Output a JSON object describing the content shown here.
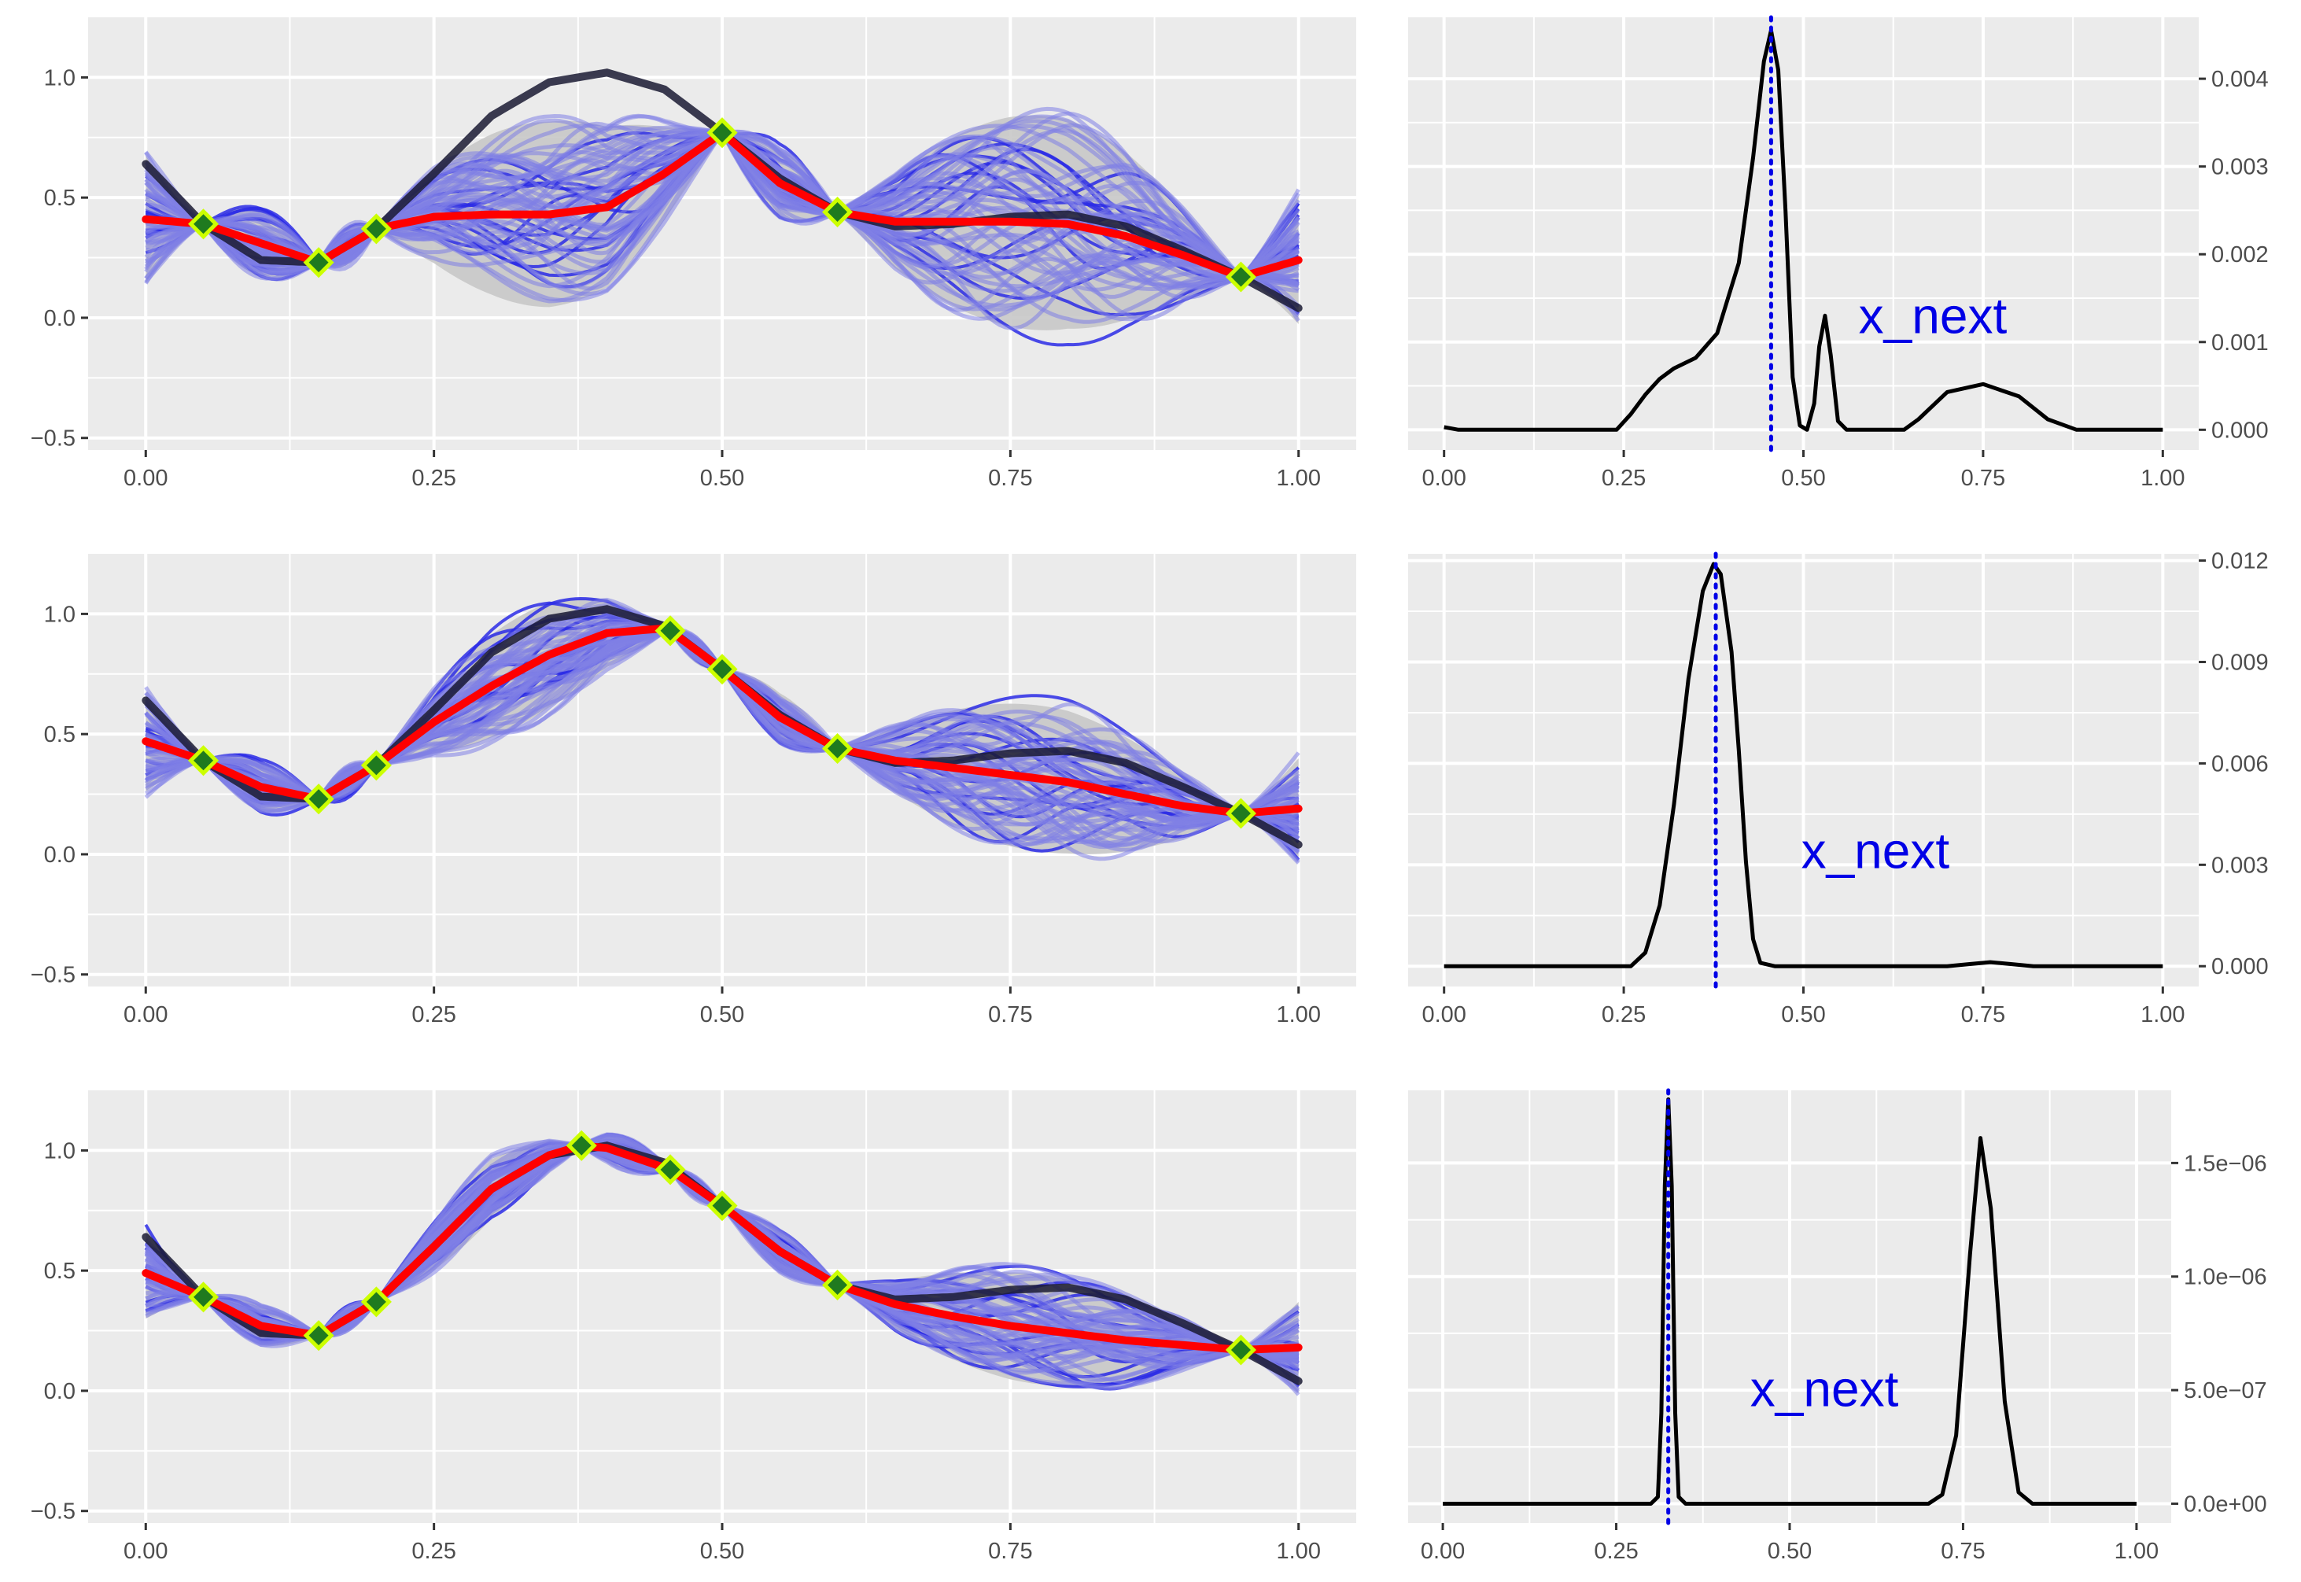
{
  "colors": {
    "panel_bg": "#ebebeb",
    "sample_band": "#c8c8c8",
    "sample_fill": "#7f7fe6",
    "sample_line": "#2b2be6",
    "true_function": "#1a1a33",
    "mean_function": "#ff0000",
    "observation_marker_fill": "#1f7a1f",
    "observation_marker_edge": "#ccff00",
    "acquisition_line": "#000000",
    "next_point_line": "#0000e6",
    "annotation_text": "#0000e6"
  },
  "chart_data": [
    {
      "id": "row1-posterior",
      "type": "line",
      "title": "",
      "xlabel": "",
      "ylabel": "",
      "xlim": [
        -0.05,
        1.05
      ],
      "ylim": [
        -0.55,
        1.25
      ],
      "x_ticks": [
        "0.00",
        "0.25",
        "0.50",
        "0.75",
        "1.00"
      ],
      "y_ticks": [
        "1.0",
        "0.5",
        "0.0",
        "-0.5"
      ],
      "observations": [
        {
          "x": 0.05,
          "y": 0.39
        },
        {
          "x": 0.15,
          "y": 0.23
        },
        {
          "x": 0.2,
          "y": 0.37
        },
        {
          "x": 0.5,
          "y": 0.77
        },
        {
          "x": 0.6,
          "y": 0.44
        },
        {
          "x": 0.95,
          "y": 0.17
        }
      ],
      "true_function": {
        "x": [
          0.0,
          0.05,
          0.1,
          0.15,
          0.2,
          0.25,
          0.3,
          0.35,
          0.4,
          0.45,
          0.5,
          0.55,
          0.6,
          0.65,
          0.7,
          0.75,
          0.8,
          0.85,
          0.9,
          0.95,
          1.0
        ],
        "y": [
          0.64,
          0.39,
          0.24,
          0.23,
          0.37,
          0.6,
          0.84,
          0.98,
          1.02,
          0.95,
          0.77,
          0.58,
          0.44,
          0.38,
          0.39,
          0.42,
          0.43,
          0.38,
          0.28,
          0.17,
          0.04
        ]
      },
      "mean_function": {
        "x": [
          0.0,
          0.05,
          0.1,
          0.15,
          0.2,
          0.25,
          0.3,
          0.35,
          0.4,
          0.45,
          0.5,
          0.55,
          0.6,
          0.65,
          0.7,
          0.75,
          0.8,
          0.85,
          0.9,
          0.95,
          1.0
        ],
        "y": [
          0.41,
          0.39,
          0.31,
          0.23,
          0.37,
          0.42,
          0.43,
          0.43,
          0.46,
          0.6,
          0.77,
          0.56,
          0.44,
          0.4,
          0.4,
          0.4,
          0.39,
          0.34,
          0.26,
          0.17,
          0.24
        ]
      },
      "samples": {
        "count": 60,
        "spread": 0.45,
        "seed": 7,
        "edge_spread": 0.28
      }
    },
    {
      "id": "row1-acquisition",
      "type": "line",
      "title": "",
      "xlabel": "",
      "ylabel": "",
      "xlim": [
        -0.05,
        1.05
      ],
      "ylim": [
        -0.00023,
        0.0047
      ],
      "x_ticks": [
        "0.00",
        "0.25",
        "0.50",
        "0.75",
        "1.00"
      ],
      "y_ticks": [
        {
          "value": 0.004,
          "label": "0.004"
        },
        {
          "value": 0.003,
          "label": "0.003"
        },
        {
          "value": 0.002,
          "label": "0.002"
        },
        {
          "value": 0.001,
          "label": "0.001"
        },
        {
          "value": 0.0,
          "label": "0.000"
        }
      ],
      "curve": {
        "x": [
          0.0,
          0.02,
          0.24,
          0.26,
          0.28,
          0.3,
          0.32,
          0.35,
          0.38,
          0.41,
          0.43,
          0.445,
          0.455,
          0.465,
          0.475,
          0.485,
          0.495,
          0.505,
          0.515,
          0.522,
          0.53,
          0.538,
          0.548,
          0.56,
          0.58,
          0.64,
          0.66,
          0.7,
          0.75,
          0.8,
          0.84,
          0.88,
          1.0
        ],
        "y": [
          3e-05,
          0.0,
          0.0,
          0.00018,
          0.0004,
          0.00058,
          0.0007,
          0.00082,
          0.0011,
          0.0019,
          0.0031,
          0.0042,
          0.00455,
          0.0041,
          0.0025,
          0.0006,
          5e-05,
          0.0,
          0.0003,
          0.00095,
          0.0013,
          0.00085,
          0.0001,
          0.0,
          0.0,
          0.0,
          0.00012,
          0.00043,
          0.00052,
          0.00038,
          0.00012,
          0.0,
          0.0
        ]
      },
      "x_next": 0.455,
      "annotation": {
        "text": "x_next",
        "x": 0.68,
        "y": 0.0011
      }
    },
    {
      "id": "row2-posterior",
      "type": "line",
      "title": "",
      "xlabel": "",
      "ylabel": "",
      "xlim": [
        -0.05,
        1.05
      ],
      "ylim": [
        -0.55,
        1.25
      ],
      "x_ticks": [
        "0.00",
        "0.25",
        "0.50",
        "0.75",
        "1.00"
      ],
      "y_ticks": [
        "1.0",
        "0.5",
        "0.0",
        "-0.5"
      ],
      "observations": [
        {
          "x": 0.05,
          "y": 0.39
        },
        {
          "x": 0.15,
          "y": 0.23
        },
        {
          "x": 0.2,
          "y": 0.37
        },
        {
          "x": 0.455,
          "y": 0.93
        },
        {
          "x": 0.5,
          "y": 0.77
        },
        {
          "x": 0.6,
          "y": 0.44
        },
        {
          "x": 0.95,
          "y": 0.17
        }
      ],
      "true_function": {
        "x": [
          0.0,
          0.05,
          0.1,
          0.15,
          0.2,
          0.25,
          0.3,
          0.35,
          0.4,
          0.45,
          0.5,
          0.55,
          0.6,
          0.65,
          0.7,
          0.75,
          0.8,
          0.85,
          0.9,
          0.95,
          1.0
        ],
        "y": [
          0.64,
          0.39,
          0.24,
          0.23,
          0.37,
          0.6,
          0.84,
          0.98,
          1.02,
          0.95,
          0.77,
          0.58,
          0.44,
          0.38,
          0.39,
          0.42,
          0.43,
          0.38,
          0.28,
          0.17,
          0.04
        ]
      },
      "mean_function": {
        "x": [
          0.0,
          0.05,
          0.1,
          0.15,
          0.2,
          0.25,
          0.3,
          0.35,
          0.4,
          0.45,
          0.455,
          0.5,
          0.55,
          0.6,
          0.65,
          0.7,
          0.75,
          0.8,
          0.85,
          0.9,
          0.95,
          1.0
        ],
        "y": [
          0.47,
          0.39,
          0.28,
          0.23,
          0.37,
          0.55,
          0.7,
          0.83,
          0.92,
          0.94,
          0.93,
          0.77,
          0.57,
          0.44,
          0.39,
          0.36,
          0.33,
          0.3,
          0.25,
          0.2,
          0.17,
          0.19
        ]
      },
      "samples": {
        "count": 60,
        "spread": 0.3,
        "seed": 19,
        "edge_spread": 0.22
      }
    },
    {
      "id": "row2-acquisition",
      "type": "line",
      "title": "",
      "xlabel": "",
      "ylabel": "",
      "xlim": [
        -0.05,
        1.05
      ],
      "ylim": [
        -0.0006,
        0.0122
      ],
      "x_ticks": [
        "0.00",
        "0.25",
        "0.50",
        "0.75",
        "1.00"
      ],
      "y_ticks": [
        {
          "value": 0.012,
          "label": "0.012"
        },
        {
          "value": 0.009,
          "label": "0.009"
        },
        {
          "value": 0.006,
          "label": "0.006"
        },
        {
          "value": 0.003,
          "label": "0.003"
        },
        {
          "value": 0.0,
          "label": "0.000"
        }
      ],
      "curve": {
        "x": [
          0.0,
          0.26,
          0.28,
          0.3,
          0.32,
          0.34,
          0.36,
          0.375,
          0.385,
          0.4,
          0.41,
          0.42,
          0.43,
          0.44,
          0.46,
          0.7,
          0.73,
          0.76,
          0.79,
          0.82,
          1.0
        ],
        "y": [
          0.0,
          0.0,
          0.0004,
          0.0018,
          0.0048,
          0.0085,
          0.0111,
          0.0119,
          0.0116,
          0.0093,
          0.0064,
          0.0031,
          0.0008,
          0.0001,
          0.0,
          0.0,
          6e-05,
          0.00012,
          6e-05,
          0.0,
          0.0
        ]
      },
      "x_next": 0.378,
      "annotation": {
        "text": "x_next",
        "x": 0.6,
        "y": 0.0029
      }
    },
    {
      "id": "row3-posterior",
      "type": "line",
      "title": "",
      "xlabel": "",
      "ylabel": "",
      "xlim": [
        -0.05,
        1.05
      ],
      "ylim": [
        -0.55,
        1.25
      ],
      "x_ticks": [
        "0.00",
        "0.25",
        "0.50",
        "0.75",
        "1.00"
      ],
      "y_ticks": [
        "1.0",
        "0.5",
        "0.0",
        "-0.5"
      ],
      "observations": [
        {
          "x": 0.05,
          "y": 0.39
        },
        {
          "x": 0.15,
          "y": 0.23
        },
        {
          "x": 0.2,
          "y": 0.37
        },
        {
          "x": 0.378,
          "y": 1.02
        },
        {
          "x": 0.455,
          "y": 0.92
        },
        {
          "x": 0.5,
          "y": 0.77
        },
        {
          "x": 0.6,
          "y": 0.44
        },
        {
          "x": 0.95,
          "y": 0.17
        }
      ],
      "true_function": {
        "x": [
          0.0,
          0.05,
          0.1,
          0.15,
          0.2,
          0.25,
          0.3,
          0.35,
          0.4,
          0.45,
          0.5,
          0.55,
          0.6,
          0.65,
          0.7,
          0.75,
          0.8,
          0.85,
          0.9,
          0.95,
          1.0
        ],
        "y": [
          0.64,
          0.39,
          0.24,
          0.23,
          0.37,
          0.6,
          0.84,
          0.98,
          1.02,
          0.95,
          0.77,
          0.58,
          0.44,
          0.38,
          0.39,
          0.42,
          0.43,
          0.38,
          0.28,
          0.17,
          0.04
        ]
      },
      "mean_function": {
        "x": [
          0.0,
          0.05,
          0.1,
          0.15,
          0.2,
          0.25,
          0.3,
          0.35,
          0.378,
          0.4,
          0.455,
          0.5,
          0.55,
          0.6,
          0.65,
          0.7,
          0.75,
          0.8,
          0.85,
          0.9,
          0.95,
          1.0
        ],
        "y": [
          0.49,
          0.39,
          0.27,
          0.23,
          0.37,
          0.6,
          0.84,
          0.98,
          1.02,
          1.01,
          0.92,
          0.77,
          0.58,
          0.44,
          0.36,
          0.31,
          0.27,
          0.24,
          0.21,
          0.19,
          0.17,
          0.18
        ]
      },
      "samples": {
        "count": 60,
        "spread": 0.22,
        "seed": 31,
        "edge_spread": 0.2
      }
    },
    {
      "id": "row3-acquisition",
      "type": "line",
      "title": "",
      "xlabel": "",
      "ylabel": "",
      "xlim": [
        -0.05,
        1.05
      ],
      "ylim": [
        -8.5e-05,
        0.00182
      ],
      "x_ticks": [
        "0.00",
        "0.25",
        "0.50",
        "0.75",
        "1.00"
      ],
      "y_ticks": [
        {
          "value": 1.5e-06,
          "label": "1.5e-06"
        },
        {
          "value": 1e-06,
          "label": "1.0e-06"
        },
        {
          "value": 5e-07,
          "label": "5.0e-07"
        },
        {
          "value": 0.0,
          "label": "0.0e+00"
        }
      ],
      "y_scale": 0.001,
      "curve": {
        "x": [
          0.0,
          0.3,
          0.31,
          0.315,
          0.32,
          0.325,
          0.33,
          0.335,
          0.34,
          0.35,
          0.7,
          0.72,
          0.74,
          0.76,
          0.775,
          0.79,
          0.81,
          0.83,
          0.85,
          1.0
        ],
        "y": [
          0.0,
          0.0,
          3e-05,
          0.0004,
          0.0014,
          0.00178,
          0.0014,
          0.0004,
          3e-05,
          0.0,
          0.0,
          4e-05,
          0.0003,
          0.0011,
          0.00161,
          0.0013,
          0.00045,
          5e-05,
          0.0,
          0.0
        ]
      },
      "x_next": 0.325,
      "annotation": {
        "text": "x_next",
        "x": 0.55,
        "y": 0.00043
      }
    }
  ]
}
